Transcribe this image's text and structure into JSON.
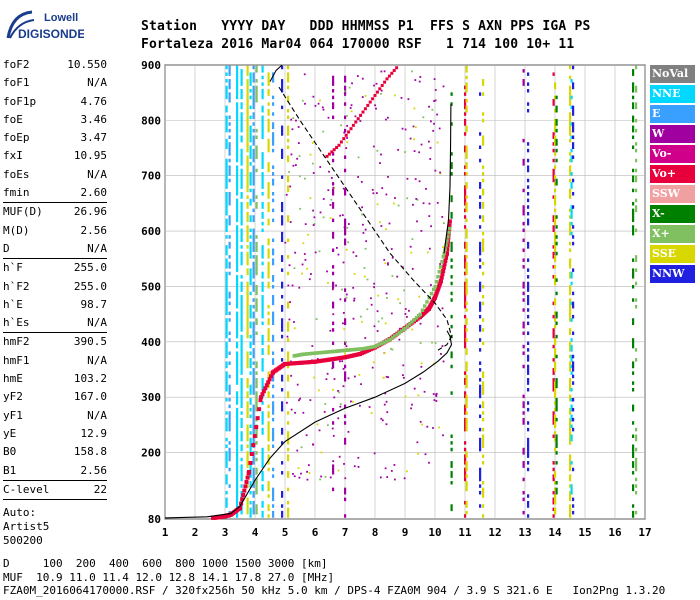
{
  "logo": {
    "line1": "Lowell",
    "line2": "DIGISONDE"
  },
  "header": {
    "labels": "Station   YYYY DAY   DDD HHMMSS P1  FFS S AXN PPS IGA PS",
    "values": "Fortaleza 2016 Mar04 064 170000 RSF   1 714 100 10+ 11"
  },
  "params": [
    {
      "name": "foF2",
      "value": "10.550"
    },
    {
      "name": "foF1",
      "value": "N/A"
    },
    {
      "name": "foF1p",
      "value": "4.76"
    },
    {
      "name": "foE",
      "value": "3.46"
    },
    {
      "name": "foEp",
      "value": "3.47"
    },
    {
      "name": "fxI",
      "value": "10.95"
    },
    {
      "name": "foEs",
      "value": "N/A"
    },
    {
      "name": "fmin",
      "value": "2.60"
    },
    {
      "sep": true
    },
    {
      "name": "MUF(D)",
      "value": "26.96"
    },
    {
      "name": "M(D)",
      "value": "2.56"
    },
    {
      "name": "D",
      "value": "N/A"
    },
    {
      "sep": true
    },
    {
      "name": "h`F",
      "value": "255.0"
    },
    {
      "name": "h`F2",
      "value": "255.0"
    },
    {
      "name": "h`E",
      "value": "98.7"
    },
    {
      "name": "h`Es",
      "value": "N/A"
    },
    {
      "sep": true
    },
    {
      "name": "hmF2",
      "value": "390.5"
    },
    {
      "name": "hmF1",
      "value": "N/A"
    },
    {
      "name": "hmE",
      "value": "103.2"
    },
    {
      "name": "yF2",
      "value": "167.0"
    },
    {
      "name": "yF1",
      "value": "N/A"
    },
    {
      "name": "yE",
      "value": "12.9"
    },
    {
      "name": "B0",
      "value": "158.8"
    },
    {
      "name": "B1",
      "value": "2.56"
    },
    {
      "sep": true
    },
    {
      "name": "C-level",
      "value": "22"
    },
    {
      "sep": true
    }
  ],
  "auto": {
    "line1": "Auto:",
    "line2": "Artist5",
    "line3": "500200"
  },
  "legend": [
    {
      "label": "NoVal",
      "color": "#808080"
    },
    {
      "label": "NNE",
      "color": "#00d8ff"
    },
    {
      "label": "E",
      "color": "#3aa0ff"
    },
    {
      "label": "W",
      "color": "#a000a0"
    },
    {
      "label": "Vo-",
      "color": "#d0008a"
    },
    {
      "label": "Vo+",
      "color": "#e8003c"
    },
    {
      "label": "SSW",
      "color": "#f0a0a0"
    },
    {
      "label": "X-",
      "color": "#008000"
    },
    {
      "label": "X+",
      "color": "#80c060"
    },
    {
      "label": "SSE",
      "color": "#d8d800"
    },
    {
      "label": "NNW",
      "color": "#2020e0"
    }
  ],
  "footer": {
    "line1": "D     100  200  400  600  800 1000 1500 3000 [km]",
    "line2": "MUF  10.9 11.0 11.4 12.0 12.8 14.1 17.8 27.0 [MHz]",
    "line3": "FZA0M_2016064170000.RSF / 320fx256h 50 kHz 5.0 km / DPS-4 FZA0M 904 / 3.9 S 321.6 E   Ion2Png 1.3.20"
  },
  "chart_data": {
    "type": "scatter",
    "xlim": [
      1,
      17
    ],
    "ylim": [
      80,
      900
    ],
    "xticks": [
      "1",
      "2",
      "3",
      "4",
      "5",
      "6",
      "7",
      "8",
      "9",
      "10",
      "11",
      "12",
      "13",
      "14",
      "15",
      "16",
      "17"
    ],
    "yticks": [
      "80",
      "200",
      "300",
      "400",
      "500",
      "600",
      "700",
      "800",
      "900"
    ],
    "grid": true,
    "trace_o": {
      "x": [
        2.6,
        2.8,
        3.0,
        3.2,
        3.5,
        3.8,
        4.2,
        4.6,
        5.0,
        5.5,
        6.0,
        6.5,
        7.0,
        7.5,
        8.0,
        8.5,
        9.0,
        9.5,
        9.8,
        10.0,
        10.2,
        10.4,
        10.5
      ],
      "y": [
        82,
        83,
        85,
        88,
        100,
        165,
        300,
        345,
        360,
        362,
        364,
        368,
        372,
        378,
        390,
        405,
        425,
        445,
        460,
        480,
        510,
        560,
        620
      ]
    },
    "trace_x": {
      "x": [
        5.3,
        5.6,
        6.0,
        6.4,
        6.8,
        7.2,
        7.6,
        8.0,
        8.5,
        9.0,
        9.5,
        10.0,
        10.3,
        10.5
      ],
      "y": [
        375,
        378,
        380,
        382,
        384,
        386,
        388,
        392,
        405,
        425,
        450,
        500,
        560,
        610
      ]
    },
    "upper_trace": {
      "x": [
        6.4,
        6.8,
        7.2,
        7.6,
        8.0,
        8.4,
        8.8
      ],
      "y": [
        735,
        755,
        785,
        815,
        845,
        875,
        900
      ]
    },
    "profile_solid": {
      "x": [
        1.0,
        2.4,
        3.2,
        3.5,
        4.0,
        4.5,
        5.0,
        6.0,
        7.0,
        8.0,
        9.0,
        9.6,
        10.1,
        10.4,
        10.55,
        10.5,
        10.4
      ],
      "y": [
        82,
        84,
        90,
        103,
        150,
        190,
        220,
        255,
        280,
        300,
        325,
        345,
        365,
        380,
        395,
        410,
        420
      ]
    },
    "profile_dashed": {
      "x": [
        4.8,
        5.5,
        6.5,
        7.5,
        8.5,
        9.3,
        10.0,
        10.4,
        10.55,
        10.4,
        10.1
      ],
      "y": [
        860,
        800,
        720,
        640,
        560,
        510,
        470,
        440,
        410,
        395,
        385
      ]
    },
    "profile_upper": {
      "x": [
        10.3,
        10.45,
        10.5,
        10.52,
        10.53
      ],
      "y": [
        560,
        620,
        680,
        760,
        830
      ]
    },
    "profile_topleft": {
      "x": [
        4.5,
        4.7,
        4.9
      ],
      "y": [
        870,
        890,
        900
      ]
    }
  }
}
